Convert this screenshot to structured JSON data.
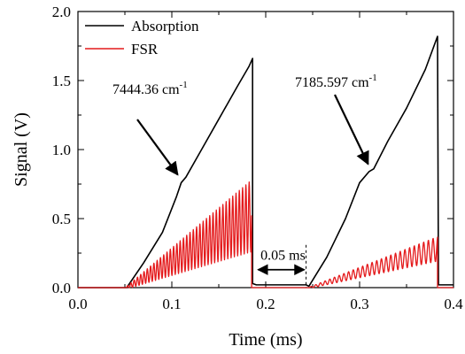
{
  "chart_data": {
    "type": "line",
    "xlabel": "Time (ms)",
    "ylabel": "Signal (V)",
    "xlim": [
      0.0,
      0.4
    ],
    "ylim": [
      0.0,
      2.0
    ],
    "x_ticks": [
      "0.0",
      "0.1",
      "0.2",
      "0.3",
      "0.4"
    ],
    "y_ticks": [
      "0.0",
      "0.5",
      "1.0",
      "1.5",
      "2.0"
    ],
    "grid": false,
    "legend_position": "top-left",
    "series": [
      {
        "name": "Absorption",
        "color": "#000000",
        "points": [
          [
            0.0,
            0.0
          ],
          [
            0.049,
            0.0
          ],
          [
            0.052,
            0.0
          ],
          [
            0.07,
            0.18
          ],
          [
            0.09,
            0.4
          ],
          [
            0.105,
            0.66
          ],
          [
            0.11,
            0.76
          ],
          [
            0.115,
            0.8
          ],
          [
            0.13,
            0.98
          ],
          [
            0.15,
            1.22
          ],
          [
            0.17,
            1.46
          ],
          [
            0.182,
            1.6
          ],
          [
            0.186,
            1.66
          ],
          [
            0.186,
            0.03
          ],
          [
            0.19,
            0.02
          ],
          [
            0.243,
            0.02
          ],
          [
            0.246,
            0.01
          ],
          [
            0.265,
            0.22
          ],
          [
            0.285,
            0.5
          ],
          [
            0.3,
            0.76
          ],
          [
            0.31,
            0.84
          ],
          [
            0.315,
            0.86
          ],
          [
            0.33,
            1.06
          ],
          [
            0.35,
            1.3
          ],
          [
            0.37,
            1.58
          ],
          [
            0.383,
            1.82
          ],
          [
            0.384,
            0.02
          ],
          [
            0.4,
            0.02
          ]
        ]
      },
      {
        "name": "FSR",
        "color": "#e41a1c",
        "segments": [
          {
            "x_start": 0.0,
            "x_end": 0.052,
            "type": "flat",
            "level": 0.0
          },
          {
            "x_start": 0.052,
            "x_end": 0.185,
            "type": "oscillation",
            "baseline_start": 0.0,
            "baseline_end": 0.52,
            "amplitude_start": 0.01,
            "amplitude_end": 0.26,
            "period": 0.0035
          },
          {
            "x_start": 0.185,
            "x_end": 0.247,
            "type": "flat",
            "level": 0.0
          },
          {
            "x_start": 0.247,
            "x_end": 0.383,
            "type": "oscillation",
            "baseline_start": 0.0,
            "baseline_end": 0.28,
            "amplitude_start": 0.005,
            "amplitude_end": 0.09,
            "period": 0.005
          },
          {
            "x_start": 0.383,
            "x_end": 0.4,
            "type": "flat",
            "level": 0.0
          }
        ]
      }
    ],
    "annotations": {
      "peak1": {
        "text": "7444.36 cm",
        "superscript": "-1",
        "arrow_tip": [
          0.11,
          0.78
        ]
      },
      "peak2": {
        "text": "7185.597 cm",
        "superscript": "-1",
        "arrow_tip": [
          0.31,
          0.85
        ]
      },
      "gap": {
        "text": "0.05 ms",
        "x_from": 0.19,
        "x_to": 0.243,
        "y": 0.13
      }
    }
  }
}
